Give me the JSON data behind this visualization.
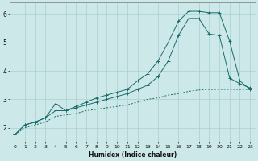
{
  "xlabel": "Humidex (Indice chaleur)",
  "bg_color": "#cce8e8",
  "line_color": "#1a6b6b",
  "grid_color": "#aacfcf",
  "xlim": [
    -0.5,
    23.5
  ],
  "ylim": [
    1.5,
    6.4
  ],
  "xticks": [
    0,
    1,
    2,
    3,
    4,
    5,
    6,
    7,
    8,
    9,
    10,
    11,
    12,
    13,
    14,
    15,
    16,
    17,
    18,
    19,
    20,
    21,
    22,
    23
  ],
  "yticks": [
    2,
    3,
    4,
    5,
    6
  ],
  "s1_x": [
    0,
    1,
    2,
    3,
    4,
    5,
    6,
    7,
    8,
    9,
    10,
    11,
    12,
    13,
    14,
    15,
    16,
    17,
    18,
    19,
    20,
    21,
    22,
    23
  ],
  "s1_y": [
    1.75,
    2.1,
    2.2,
    2.35,
    2.85,
    2.6,
    2.75,
    2.9,
    3.05,
    3.15,
    3.25,
    3.35,
    3.65,
    3.9,
    4.35,
    5.0,
    5.75,
    6.1,
    6.1,
    6.05,
    6.05,
    5.05,
    3.65,
    3.35
  ],
  "s2_x": [
    0,
    1,
    2,
    3,
    4,
    5,
    6,
    7,
    8,
    9,
    10,
    11,
    12,
    13,
    14,
    15,
    16,
    17,
    18,
    19,
    20,
    21,
    22,
    23
  ],
  "s2_y": [
    1.75,
    2.1,
    2.2,
    2.35,
    2.6,
    2.6,
    2.7,
    2.8,
    2.9,
    3.0,
    3.1,
    3.2,
    3.35,
    3.5,
    3.8,
    4.35,
    5.25,
    5.85,
    5.85,
    5.3,
    5.25,
    3.75,
    3.55,
    3.4
  ],
  "s3_x": [
    0,
    1,
    2,
    3,
    4,
    5,
    6,
    7,
    8,
    9,
    10,
    11,
    12,
    13,
    14,
    15,
    16,
    17,
    18,
    19,
    20,
    21,
    22,
    23
  ],
  "s3_y": [
    1.75,
    2.0,
    2.1,
    2.2,
    2.4,
    2.45,
    2.5,
    2.6,
    2.65,
    2.7,
    2.75,
    2.8,
    2.9,
    3.0,
    3.05,
    3.15,
    3.2,
    3.28,
    3.33,
    3.35,
    3.35,
    3.35,
    3.35,
    3.35
  ]
}
